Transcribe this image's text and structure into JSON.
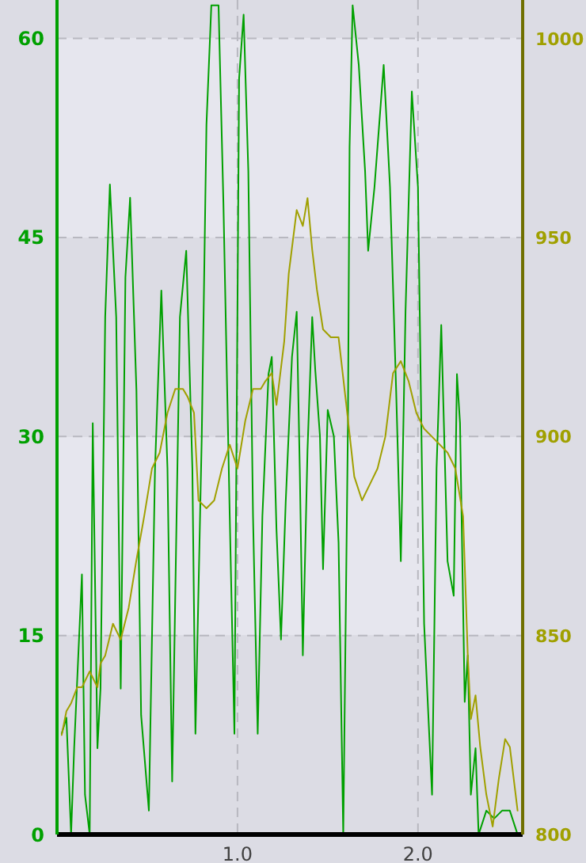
{
  "chart_data": {
    "type": "line",
    "xlim": [
      0,
      2.58
    ],
    "xticks": [
      {
        "value": 1,
        "label": "1.0"
      },
      {
        "value": 2,
        "label": "2.0"
      }
    ],
    "ylim": [
      0,
      62.9
    ],
    "yticks": [
      0,
      15,
      30,
      45,
      60
    ],
    "y2lim": [
      800,
      1009.8
    ],
    "y2ticks": [
      800,
      850,
      900,
      950,
      1000
    ],
    "grid": true,
    "legend": false,
    "marker": "none",
    "line_style": "solid",
    "series": [
      {
        "color": "#00a000",
        "axis": "y",
        "x": [
          0.026,
          0.052,
          0.078,
          0.095,
          0.138,
          0.155,
          0.181,
          0.198,
          0.224,
          0.241,
          0.267,
          0.293,
          0.328,
          0.353,
          0.379,
          0.405,
          0.44,
          0.466,
          0.509,
          0.543,
          0.578,
          0.612,
          0.638,
          0.681,
          0.716,
          0.75,
          0.767,
          0.802,
          0.828,
          0.855,
          0.895,
          0.922,
          0.957,
          0.983,
          1.009,
          1.034,
          1.06,
          1.086,
          1.112,
          1.138,
          1.172,
          1.19,
          1.216,
          1.241,
          1.267,
          1.302,
          1.328,
          1.345,
          1.362,
          1.388,
          1.414,
          1.431,
          1.457,
          1.474,
          1.5,
          1.534,
          1.56,
          1.586,
          1.612,
          1.621,
          1.638,
          1.672,
          1.707,
          1.724,
          1.759,
          1.81,
          1.845,
          1.879,
          1.905,
          1.931,
          1.966,
          2.0,
          2.034,
          2.078,
          2.103,
          2.129,
          2.164,
          2.198,
          2.216,
          2.233,
          2.259,
          2.276,
          2.293,
          2.319,
          2.336,
          2.379,
          2.422,
          2.466,
          2.509,
          2.552
        ],
        "values": [
          7.6,
          8.8,
          0,
          6.5,
          19.6,
          3,
          0,
          31,
          6.5,
          11,
          39,
          49,
          39,
          11,
          42,
          48,
          33.5,
          9,
          1.8,
          27.6,
          41,
          27.6,
          4,
          39,
          44,
          27.6,
          7.6,
          30,
          53.5,
          62.5,
          62.5,
          47.6,
          24,
          7.6,
          57,
          61.8,
          50,
          24,
          7.6,
          24,
          34.7,
          36,
          23,
          14.7,
          25,
          36,
          39.4,
          27.6,
          13.5,
          29,
          39,
          35,
          30,
          20,
          32,
          30,
          22,
          0,
          31,
          51.8,
          62.5,
          58,
          50,
          44,
          48.8,
          58,
          48.8,
          33.5,
          20.6,
          39.4,
          56,
          48.8,
          15.9,
          3,
          27.6,
          38.4,
          20.6,
          18,
          34.7,
          31,
          10,
          13.5,
          3,
          6.5,
          0,
          1.8,
          1.2,
          1.8,
          1.8,
          0
        ]
      },
      {
        "color": "#a0a000",
        "axis": "y2",
        "x": [
          0.026,
          0.052,
          0.078,
          0.112,
          0.138,
          0.181,
          0.224,
          0.241,
          0.267,
          0.31,
          0.353,
          0.397,
          0.44,
          0.483,
          0.526,
          0.569,
          0.612,
          0.655,
          0.698,
          0.724,
          0.759,
          0.784,
          0.828,
          0.871,
          0.914,
          0.957,
          1.0,
          1.043,
          1.086,
          1.129,
          1.155,
          1.19,
          1.216,
          1.259,
          1.284,
          1.328,
          1.362,
          1.388,
          1.414,
          1.44,
          1.474,
          1.517,
          1.56,
          1.603,
          1.647,
          1.69,
          1.733,
          1.776,
          1.819,
          1.862,
          1.905,
          1.948,
          1.991,
          2.034,
          2.078,
          2.121,
          2.164,
          2.207,
          2.25,
          2.276,
          2.293,
          2.319,
          2.345,
          2.379,
          2.414,
          2.448,
          2.483,
          2.509,
          2.552
        ],
        "values": [
          825,
          831,
          833,
          837,
          837,
          841,
          837,
          843,
          845,
          853,
          849,
          857,
          869,
          880,
          892,
          896,
          906,
          912,
          912,
          910,
          906,
          884,
          882,
          884,
          892,
          898,
          892,
          904,
          912,
          912,
          914,
          916,
          908,
          924,
          941,
          957,
          953,
          960,
          947,
          937,
          927,
          925,
          925,
          908,
          890,
          884,
          888,
          892,
          900,
          916,
          919,
          914,
          906,
          902,
          900,
          898,
          896,
          892,
          880,
          845,
          829,
          835,
          822,
          810,
          802,
          814,
          824,
          822,
          806
        ]
      }
    ]
  }
}
